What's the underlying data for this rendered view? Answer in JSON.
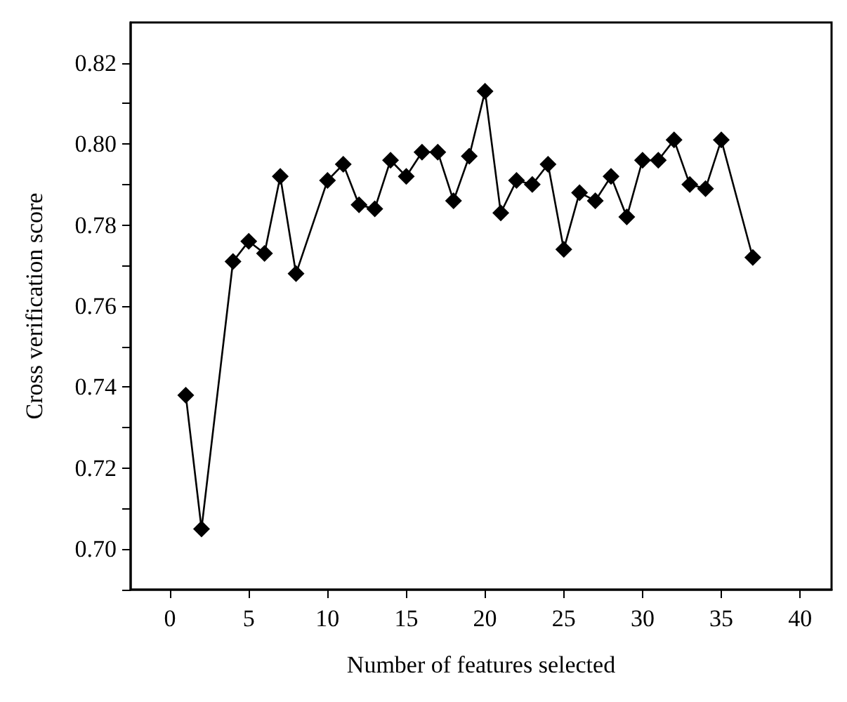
{
  "chart_data": {
    "type": "line",
    "xlabel": "Number of features selected",
    "ylabel": "Cross verification score",
    "x": [
      1,
      2,
      4,
      5,
      6,
      7,
      8,
      10,
      11,
      12,
      13,
      14,
      15,
      16,
      17,
      18,
      19,
      20,
      21,
      22,
      23,
      24,
      25,
      26,
      27,
      28,
      29,
      30,
      31,
      32,
      33,
      34,
      35,
      37
    ],
    "series": [
      {
        "color": "#000000",
        "values": [
          0.738,
          0.705,
          0.771,
          0.776,
          0.773,
          0.792,
          0.768,
          0.791,
          0.795,
          0.785,
          0.784,
          0.796,
          0.792,
          0.798,
          0.798,
          0.786,
          0.797,
          0.813,
          0.783,
          0.791,
          0.79,
          0.795,
          0.774,
          0.788,
          0.786,
          0.792,
          0.782,
          0.796,
          0.796,
          0.801,
          0.79,
          0.789,
          0.801,
          0.772
        ]
      }
    ],
    "xlim": [
      -2.5,
      42
    ],
    "xticks": [
      0,
      5,
      10,
      15,
      20,
      25,
      30,
      35,
      40
    ],
    "ylim": [
      0.69,
      0.83
    ],
    "yticks": [
      {
        "value": 0.7,
        "label": "0.70"
      },
      0.72,
      0.74,
      0.76,
      0.78,
      {
        "value": 0.8,
        "label": "0.80"
      },
      0.82
    ],
    "marker": "diamond",
    "line_style": "solid"
  }
}
